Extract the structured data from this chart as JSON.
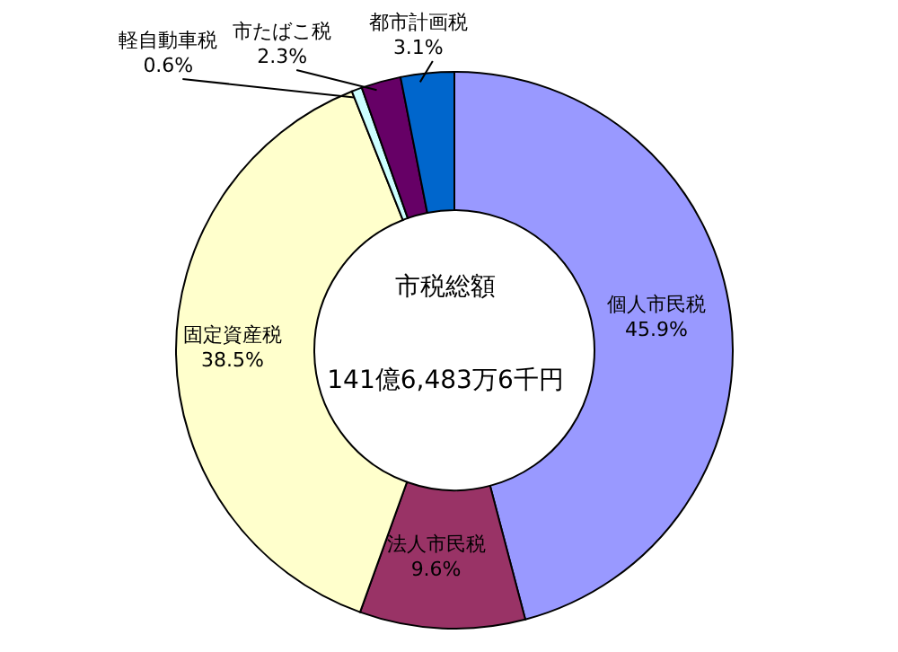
{
  "chart_data": {
    "type": "donut",
    "categories": [
      "個人市民税",
      "法人市民税",
      "固定資産税",
      "軽自動車税",
      "市たばこ税",
      "都市計画税"
    ],
    "values": [
      45.9,
      9.6,
      38.5,
      0.6,
      2.3,
      3.1
    ],
    "colors": [
      "#9999ff",
      "#993366",
      "#ffffcc",
      "#ccffff",
      "#660066",
      "#0066cc"
    ],
    "value_labels": [
      "45.9%",
      "9.6%",
      "38.5%",
      "0.6%",
      "2.3%",
      "3.1%"
    ],
    "annotations": [
      "市税総額",
      "141億6,483万6千円"
    ]
  }
}
